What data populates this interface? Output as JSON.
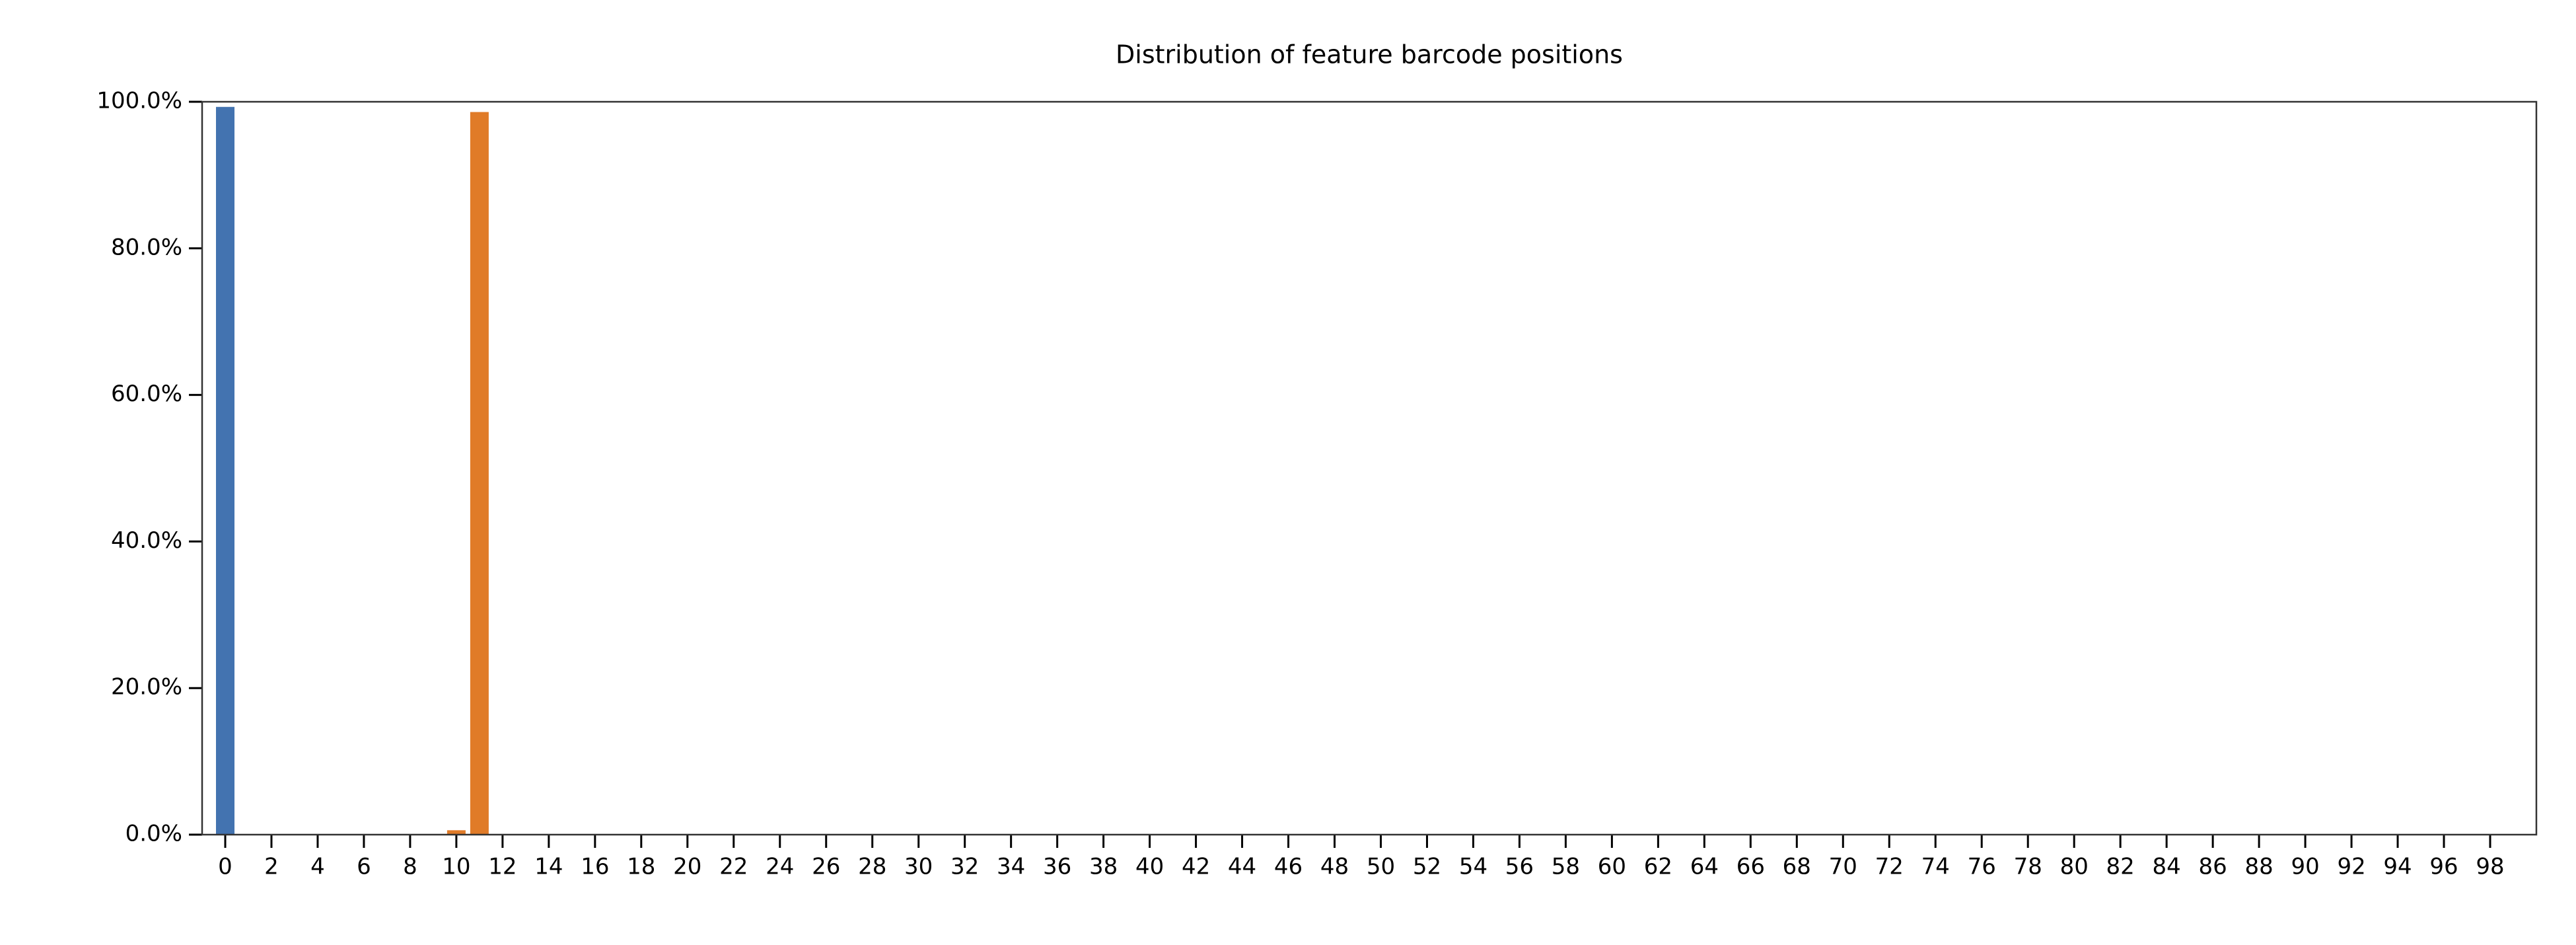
{
  "chart_data": {
    "type": "bar",
    "title": "Distribution of feature barcode positions",
    "xlim": [
      -1,
      100
    ],
    "xticks": [
      0,
      2,
      4,
      6,
      8,
      10,
      12,
      14,
      16,
      18,
      20,
      22,
      24,
      26,
      28,
      30,
      32,
      34,
      36,
      38,
      40,
      42,
      44,
      46,
      48,
      50,
      52,
      54,
      56,
      58,
      60,
      62,
      64,
      66,
      68,
      70,
      72,
      74,
      76,
      78,
      80,
      82,
      84,
      86,
      88,
      90,
      92,
      94,
      96,
      98
    ],
    "ylim": [
      0,
      100
    ],
    "yticks": [
      {
        "value": 0,
        "label": "0.0%"
      },
      {
        "value": 20,
        "label": "20.0%"
      },
      {
        "value": 40,
        "label": "40.0%"
      },
      {
        "value": 60,
        "label": "60.0%"
      },
      {
        "value": 80,
        "label": "80.0%"
      },
      {
        "value": 100,
        "label": "100.0%"
      }
    ],
    "series": [
      {
        "color": "#4373b0",
        "x": [
          0
        ],
        "values": [
          99.3
        ]
      },
      {
        "color": "#e07b28",
        "x": [
          10,
          11
        ],
        "values": [
          0.6,
          98.6
        ]
      }
    ]
  }
}
